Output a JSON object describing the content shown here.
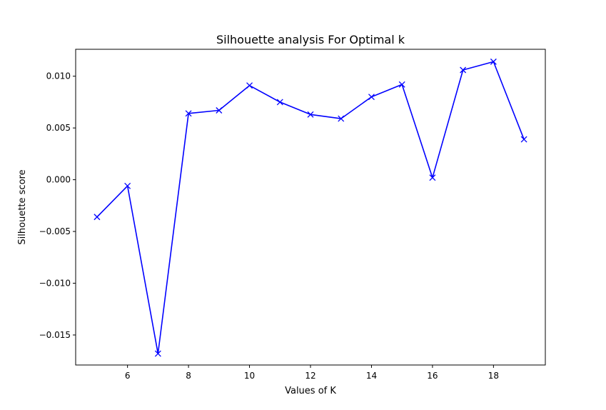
{
  "chart_data": {
    "type": "line",
    "title": "Silhouette analysis For Optimal k",
    "xlabel": "Values of K",
    "ylabel": "Silhouette score",
    "xlim": [
      4.3,
      19.7
    ],
    "ylim": [
      -0.0179,
      0.0126
    ],
    "xticks": [
      6,
      8,
      10,
      12,
      14,
      16,
      18
    ],
    "xtick_labels": [
      "6",
      "8",
      "10",
      "12",
      "14",
      "16",
      "18"
    ],
    "yticks": [
      -0.015,
      -0.01,
      -0.005,
      0.0,
      0.005,
      0.01
    ],
    "ytick_labels": [
      "−0.015",
      "−0.010",
      "−0.005",
      "0.000",
      "0.005",
      "0.010"
    ],
    "grid": false,
    "series": [
      {
        "color": "#0000ff",
        "marker": "x",
        "x": [
          5,
          6,
          7,
          8,
          9,
          10,
          11,
          12,
          13,
          14,
          15,
          16,
          17,
          18,
          19
        ],
        "y": [
          -0.0036,
          -0.0006,
          -0.0168,
          0.0064,
          0.0067,
          0.0091,
          0.0075,
          0.0063,
          0.0059,
          0.008,
          0.0092,
          0.0002,
          0.0106,
          0.0114,
          0.0039
        ]
      }
    ]
  }
}
